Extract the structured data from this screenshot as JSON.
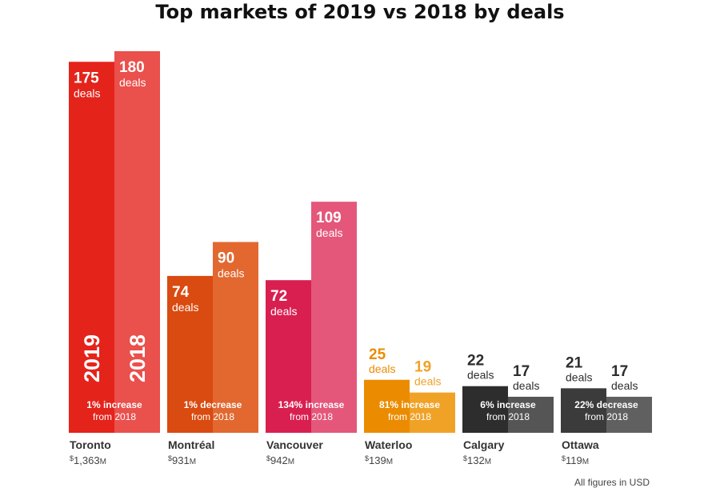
{
  "chart_data": {
    "type": "bar",
    "title": "Top markets of 2019 vs 2018 by deals",
    "footnote": "All figures in USD",
    "series_names": [
      "2019",
      "2018"
    ],
    "unit_label": "deals",
    "ylim": [
      0,
      190
    ],
    "markets": [
      {
        "name": "Toronto",
        "amount_symbol": "$",
        "amount_value": "1,363",
        "amount_unit": "M",
        "deals_2019": 175,
        "deals_2018": 180,
        "change_line1": "1% increase",
        "change_line2": "from 2018",
        "color_2019": "#e4231b",
        "color_2018": "#ea504c"
      },
      {
        "name": "Montréal",
        "amount_symbol": "$",
        "amount_value": "931",
        "amount_unit": "M",
        "deals_2019": 74,
        "deals_2018": 90,
        "change_line1": "1% decrease",
        "change_line2": "from 2018",
        "color_2019": "#d94b10",
        "color_2018": "#e2682f"
      },
      {
        "name": "Vancouver",
        "amount_symbol": "$",
        "amount_value": "942",
        "amount_unit": "M",
        "deals_2019": 72,
        "deals_2018": 109,
        "change_line1": "134% increase",
        "change_line2": "from 2018",
        "color_2019": "#d81f50",
        "color_2018": "#e4577a"
      },
      {
        "name": "Waterloo",
        "amount_symbol": "$",
        "amount_value": "139",
        "amount_unit": "M",
        "deals_2019": 25,
        "deals_2018": 19,
        "change_line1": "81% increase",
        "change_line2": "from 2018",
        "color_2019": "#eb8c00",
        "color_2018": "#f0a227"
      },
      {
        "name": "Calgary",
        "amount_symbol": "$",
        "amount_value": "132",
        "amount_unit": "M",
        "deals_2019": 22,
        "deals_2018": 17,
        "change_line1": "6% increase",
        "change_line2": "from 2018",
        "color_2019": "#2d2d2d",
        "color_2018": "#555555"
      },
      {
        "name": "Ottawa",
        "amount_symbol": "$",
        "amount_value": "119",
        "amount_unit": "M",
        "deals_2019": 21,
        "deals_2018": 17,
        "change_line1": "22% decrease",
        "change_line2": "from 2018",
        "color_2019": "#3b3b3b",
        "color_2018": "#606060"
      }
    ]
  }
}
